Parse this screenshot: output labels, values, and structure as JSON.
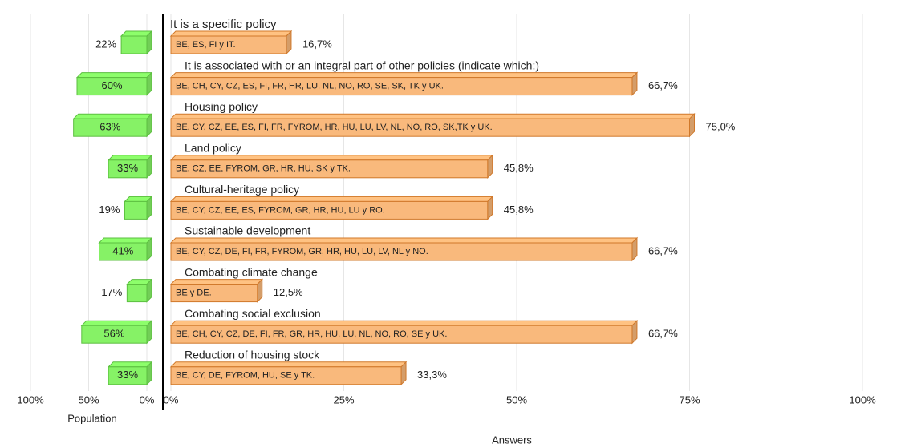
{
  "chart_data": [
    {
      "type": "bar",
      "orientation": "horizontal",
      "xlabel": "Population",
      "color": "#86f266",
      "values": [
        22,
        60,
        63,
        33,
        19,
        41,
        17,
        56,
        33
      ],
      "value_labels": [
        "22%",
        "60%",
        "63%",
        "33%",
        "19%",
        "41%",
        "17%",
        "56%",
        "33%"
      ],
      "xlim": [
        100,
        0
      ],
      "xticks": [
        {
          "value": 100,
          "label": "100%"
        },
        {
          "value": 50,
          "label": "50%"
        },
        {
          "value": 0,
          "label": "0%"
        }
      ],
      "grid": true
    },
    {
      "type": "bar",
      "orientation": "horizontal",
      "xlabel": "Answers",
      "color": "#f9b97c",
      "categories": [
        "It is a specific policy",
        "It is associated with or an integral part of other policies (indicate which:)",
        "Housing policy",
        "Land policy",
        "Cultural-heritage policy",
        "Sustainable development",
        "Combating climate change",
        "Combating social exclusion",
        "Reduction of housing stock"
      ],
      "values": [
        16.7,
        66.7,
        75.0,
        45.8,
        45.8,
        66.7,
        12.5,
        66.7,
        33.3
      ],
      "value_labels": [
        "16,7%",
        "66,7%",
        "75,0%",
        "45,8%",
        "45,8%",
        "66,7%",
        "12,5%",
        "66,7%",
        "33,3%"
      ],
      "bar_labels": [
        "BE, ES, FI y IT.",
        "BE, CH, CY, CZ, ES, FI, FR, HR, LU, NL, NO, RO, SE, SK, TK y UK.",
        "BE, CY, CZ, EE, ES, FI, FR, FYROM, HR, HU, LU, LV, NL, NO, RO, SK,TK y UK.",
        "BE, CZ, EE, FYROM, GR, HR, HU, SK y TK.",
        "BE, CY, CZ, EE, ES, FYROM, GR, HR, HU, LU y RO.",
        "BE, CY, CZ, DE, FI, FR, FYROM, GR, HR, HU, LU, LV, NL y NO.",
        "BE y DE.",
        "BE, CH, CY, CZ, DE, FI, FR, GR, HR, HU, LU, NL, NO, RO, SE y UK.",
        "BE, CY, DE, FYROM, HU, SE y TK."
      ],
      "xlim": [
        0,
        100
      ],
      "xticks": [
        {
          "value": 0,
          "label": "0%"
        },
        {
          "value": 25,
          "label": "25%"
        },
        {
          "value": 50,
          "label": "50%"
        },
        {
          "value": 75,
          "label": "75%"
        },
        {
          "value": 100,
          "label": "100%"
        }
      ],
      "grid": true
    }
  ]
}
